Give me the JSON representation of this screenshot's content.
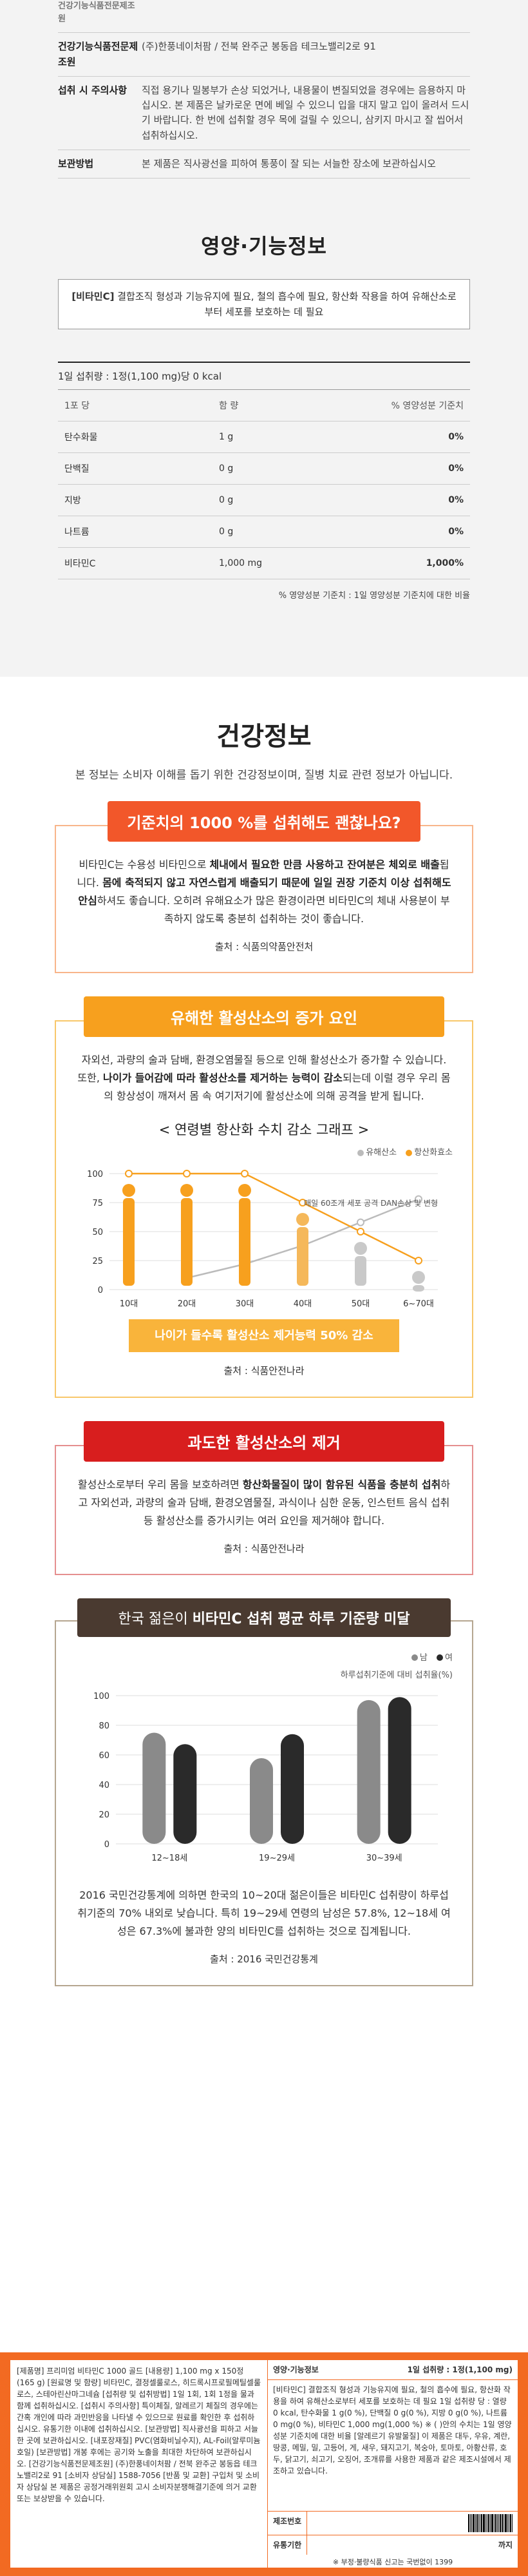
{
  "info": {
    "partial_row": "건강기능식품전문제조원",
    "rows": [
      {
        "key": "건강기능식품전문제조원",
        "value": "(주)한풍네이처팜 / 전북 완주군 봉동읍 테크노밸리2로 91"
      },
      {
        "key": "섭취 시 주의사항",
        "value": "직접 용기나 밀봉부가 손상 되었거나, 내용물이 변질되었을 경우에는 음용하지 마십시오. 본 제품은 날카로운 면에 베일 수 있으니 입을 대지 말고 입이 올려서 드시기 바랍니다. 한 번에 섭취할 경우 목에 걸릴 수 있으니, 삼키지 마시고 잘 씹어서 섭취하십시오."
      },
      {
        "key": "보관방법",
        "value": "본 제품은 직사광선을 피하여 통풍이 잘 되는 서늘한 장소에 보관하십시오"
      }
    ]
  },
  "func": {
    "title": "영양·기능정보",
    "text_bold": "[비타민C]",
    "text": "결합조직 형성과 기능유지에 필요, 철의 흡수에 필요, 항산화 작용을 하여 유해산소로부터 세포를 보호하는 데 필요"
  },
  "nutrition": {
    "serving": "1일 섭취량 : 1정(1,100 mg)당 0 kcal",
    "header": {
      "c1": "1포 당",
      "c2": "함    량",
      "c3": "% 영양성분 기준치"
    },
    "rows": [
      {
        "name": "탄수화물",
        "amount": "1 g",
        "pct": "0%"
      },
      {
        "name": "단백질",
        "amount": "0 g",
        "pct": "0%"
      },
      {
        "name": "지방",
        "amount": "0 g",
        "pct": "0%"
      },
      {
        "name": "나트륨",
        "amount": "0 g",
        "pct": "0%"
      },
      {
        "name": "비타민C",
        "amount": "1,000 mg",
        "pct": "1,000%"
      }
    ],
    "footnote": "% 영양성분 기준치 : 1일 영양성분 기준치에 대한 비율"
  },
  "health": {
    "title": "건강정보",
    "subtitle": "본 정보는 소비자 이해를 돕기 위한 건강정보이며, 질병 치료 관련 정보가 아닙니다."
  },
  "card1": {
    "banner": "기준치의 1000 %를 섭취해도 괜찮나요?",
    "body_1": "비타민C는 수용성 비타민으로 ",
    "body_b1": "체내에서 필요한 만큼 사용하고 잔여분은 체외로 배출",
    "body_2": "됩니다. ",
    "body_b2": "몸에 축적되지 않고 자연스럽게 배출되기 때문에 일일 권장 기준치 이상 섭취해도 안심",
    "body_3": "하셔도 좋습니다. 오히려 유해요소가 많은 환경이라면 비타민C의 체내 사용분이 부족하지 않도록 충분히 섭취하는 것이 좋습니다.",
    "source": "출처 : 식품의약품안전처"
  },
  "card2": {
    "banner": "유해한 활성산소의 증가 요인",
    "body_1": "자외선, 과량의 술과 담배, 환경오염물질 등으로 인해 활성산소가 증가할 수 있습니다. 또한, ",
    "body_b1": "나이가 들어감에 따라 활성산소를 제거하는 능력이 감소",
    "body_2": "되는데 이럴 경우 우리 몸의 항상성이 깨져서 몸 속 여기저기에 활성산소에 의해 공격을 받게 됩니다.",
    "chart_title": "< 연령별 항산화 수치 감소 그래프 >",
    "legend": [
      "유해산소",
      "항산화효소"
    ],
    "annotation": "매일 60조개 세포 공격 DAN손상 및 변형",
    "note": "나이가 들수록 활성산소 제거능력 50% 감소",
    "source": "출처 : 식품안전나라"
  },
  "card3": {
    "banner": "과도한 활성산소의 제거",
    "body_1": "활성산소로부터 우리 몸을 보호하려면 ",
    "body_b1": "항산화물질이 많이 함유된 식품을 충분히 섭취",
    "body_2": "하고 자외선과, 과량의 술과 담배, 환경오염물질, 과식이나 심한 운동, 인스턴트 음식 섭취 등 활성산소를 증가시키는 여러 요인을 제거해야 합니다.",
    "source": "출처 : 식품안전나라"
  },
  "card4": {
    "banner_1": "한국 젊은이 ",
    "banner_b": "비타민C 섭취 평균 하루 기준량 미달",
    "legend": [
      "남",
      "여"
    ],
    "axis_caption": "하루섭취기준에 대비 섭취율(%)",
    "body_1": "2016 국민건강통계에 의하면 한국의 10~20대 젊은이들은 비타민C 섭취량이 하루섭취기준의 70% 내외로 낮습니다. 특히 19~29세 연령의 남성은 57.8%, 12~18세 여성은 67.3%에 불과한 양의 비타민C를 섭취하는 것으로 집계됩니다.",
    "source": "출처 : 2016 국민건강통계"
  },
  "chart_data": [
    {
      "type": "line",
      "title": "< 연령별 항산화 수치 감소 그래프 >",
      "categories": [
        "10대",
        "20대",
        "30대",
        "40대",
        "50대",
        "6~70대"
      ],
      "series": [
        {
          "name": "유해산소",
          "values": [
            null,
            10,
            22,
            38,
            58,
            78
          ]
        },
        {
          "name": "항산화효소",
          "values": [
            100,
            100,
            100,
            75,
            50,
            25
          ]
        }
      ],
      "ylim": [
        0,
        100
      ],
      "yticks": [
        0,
        25,
        50,
        75,
        100
      ],
      "colors": {
        "유해산소": "#bbbbbb",
        "항산화효소": "#f7a01e"
      }
    },
    {
      "type": "bar",
      "title": "",
      "categories": [
        "12~18세",
        "19~29세",
        "30~39세"
      ],
      "series": [
        {
          "name": "남",
          "values": [
            75,
            57.8,
            97
          ]
        },
        {
          "name": "여",
          "values": [
            67.3,
            74,
            99
          ]
        }
      ],
      "ylim": [
        0,
        100
      ],
      "yticks": [
        0,
        20,
        40,
        60,
        80,
        100
      ],
      "ylabel": "하루섭취기준에 대비 섭취율(%)",
      "colors": {
        "남": "#8a8a8a",
        "여": "#2a2a2a"
      }
    }
  ],
  "label": {
    "left_text": "[제품명] 프리미엄 비타민C 1000 골드 [내용량] 1,100 mg x 150정(165 g) [원료명 및 함량] 비타민C, 결정셀룰로스, 히드록시프로필메틸셀룰로스, 스테아린산마그네슘 [섭취량 및 섭취방법] 1일 1회, 1회 1정을 물과 함께 섭취하십시오. [섭취시 주의사항] 특이체질, 알레르기 체질의 경우에는 간혹 개인에 따라 과민반응을 나타낼 수 있으므로 원료를 확인한 후 섭취하십시오. 유통기한 이내에 섭취하십시오. [보관방법] 직사광선을 피하고 서늘한 곳에 보관하십시오. [내포장재질] PVC(염화비닐수지), AL-Foil(알루미늄호일) [보관방법] 개봉 후에는 공기와 노출을 최대한 차단하여 보관하십시오. [건강기능식품전문제조원] (주)한풍네이처팜 / 전북 완주군 봉동읍 테크노밸리2로 91 [소비자 상담실] 1588-7056 [반품 및 교환] 구입처 및 소비자 상담실 본 제품은 공정거래위원회 고시 소비자분쟁해결기준에 의거 교환 또는 보상받을 수 있습니다.",
    "right_head_left": "영양·기능정보",
    "right_head_right": "1일 섭취량 : 1정(1,100 mg)",
    "right_body": "[비타민C] 결합조직 형성과 기능유지에 필요, 철의 흡수에 필요, 항산화 작용을 하여 유해산소로부터 세포를 보호하는 데 필요 1일 섭취량 당 : 열량 0 kcal, 탄수화물 1 g(0 %), 단백질 0 g(0 %), 지방 0 g(0 %), 나트륨 0 mg(0 %), 비타민C 1,000 mg(1,000 %) ※ ( )안의 수치는 1일 영양성분 기준치에 대한 비율 [알레르기 유발물질] 이 제품은 대두, 우유, 계란, 땅콩, 메밀, 밀, 고등어, 게, 새우, 돼지고기, 복숭아, 토마토, 아황산류, 호두, 닭고기, 쇠고기, 오징어, 조개류를 사용한 제품과 같은 제조시설에서 제조하고 있습니다.",
    "made_label": "제조번호",
    "expiry_label": "유통기한",
    "expiry_value": "까지",
    "bottom": "※ 부정·불량식품 신고는 국번없이 1399"
  }
}
